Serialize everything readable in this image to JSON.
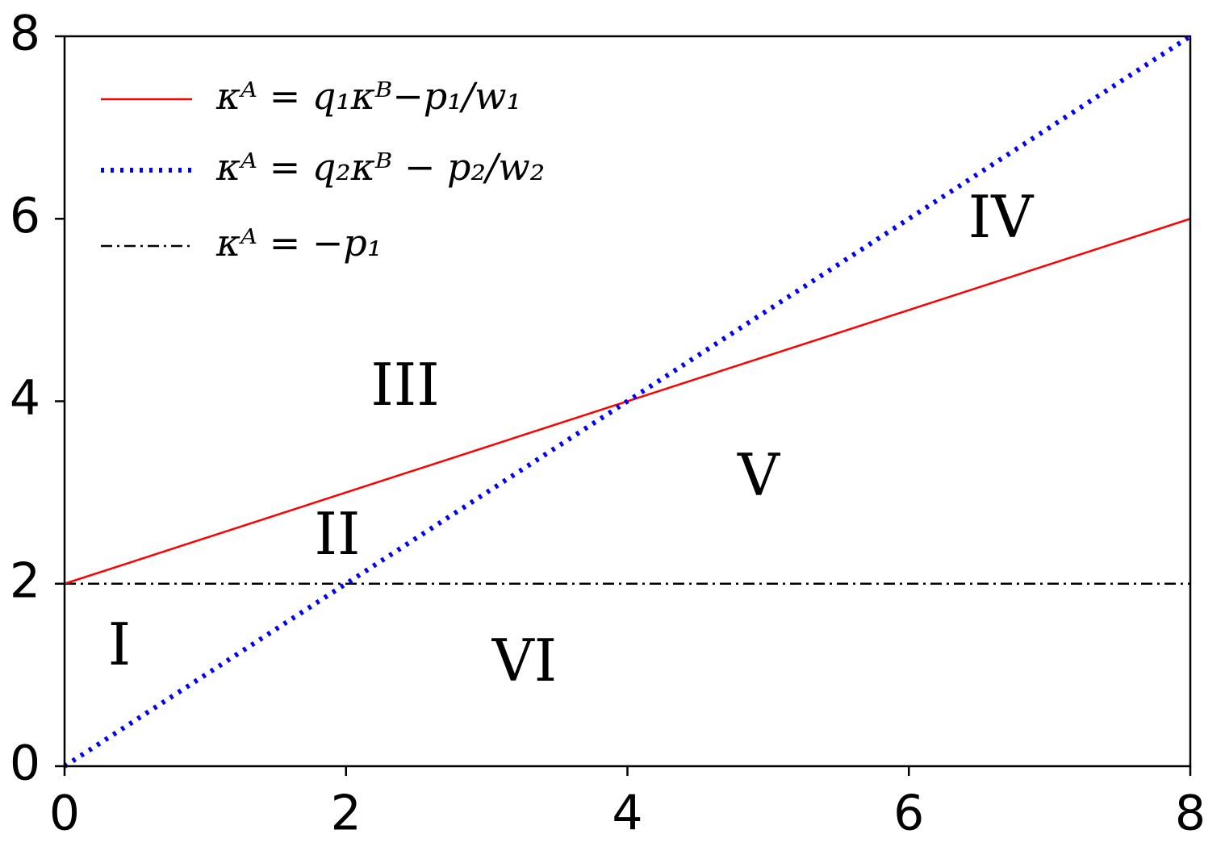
{
  "chart_data": {
    "type": "line",
    "x": [
      0,
      8
    ],
    "series": [
      {
        "name": "κᴬ = q₁κᴮ−p₁/w₁",
        "color": "#ff0000",
        "style": "solid",
        "values": [
          2,
          6
        ]
      },
      {
        "name": "κᴬ = q₂κᴮ − p₂/w₂",
        "color": "#0000ff",
        "style": "dotted",
        "values": [
          0,
          8
        ]
      },
      {
        "name": "κᴬ = −p₁",
        "color": "#000000",
        "style": "dashdot",
        "values": [
          2,
          2
        ]
      }
    ],
    "annotations": [
      "I",
      "II",
      "III",
      "IV",
      "V",
      "VI"
    ],
    "xlim": [
      0,
      8
    ],
    "ylim": [
      0,
      8
    ],
    "xticks": [
      0,
      2,
      4,
      6,
      8
    ],
    "yticks": [
      0,
      2,
      4,
      6,
      8
    ],
    "legend": "upper left"
  }
}
